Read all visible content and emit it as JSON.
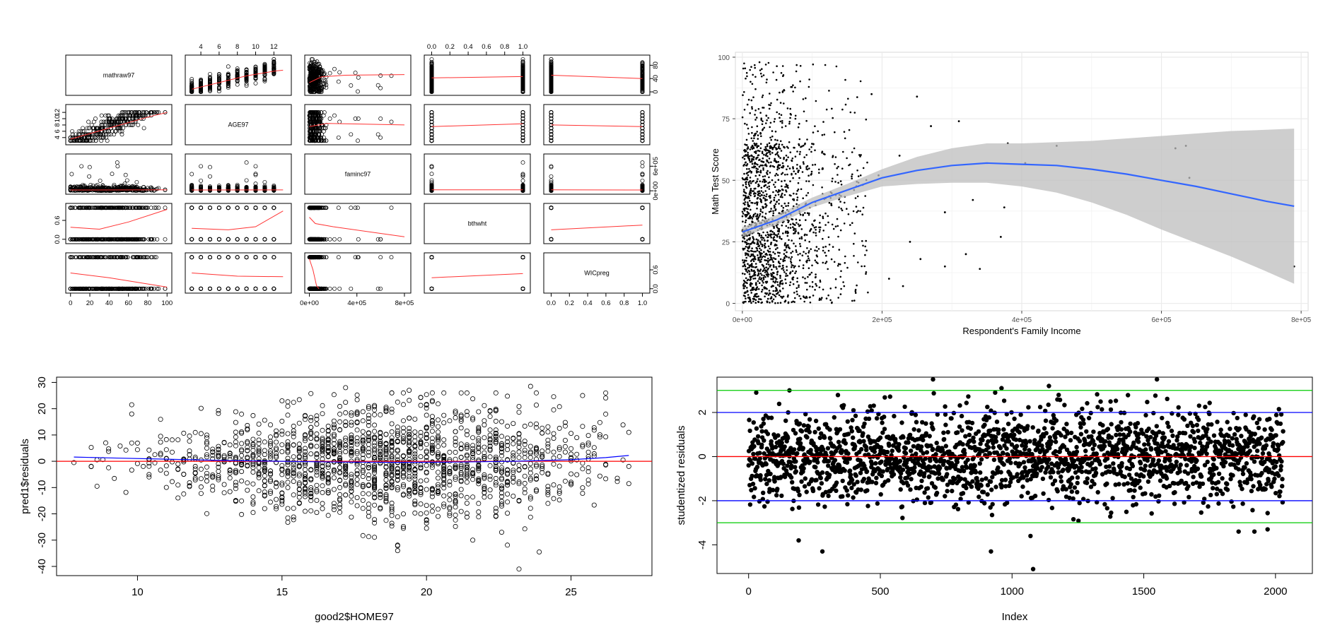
{
  "colors": {
    "loess_red": "#ff3333",
    "smooth_blue": "#3366ff",
    "ribbon_grey": "#bdbdbd",
    "panel_bg": "#ffffff",
    "grid": "#ebebeb",
    "zero_red": "#ff0000",
    "blue_line": "#0000ff",
    "green_line": "#00cc00"
  },
  "chart_data": [
    {
      "id": "pairs",
      "type": "scatter",
      "variables": [
        "mathraw97",
        "AGE97",
        "faminc97",
        "bthwht",
        "WICpreg"
      ],
      "top_ticks": {
        "AGE97": [
          "4",
          "6",
          "8",
          "10",
          "12"
        ],
        "bthwht": [
          "0.0",
          "0.2",
          "0.4",
          "0.6",
          "0.8",
          "1.0"
        ]
      },
      "bottom_ticks": {
        "mathraw97": [
          "0",
          "20",
          "40",
          "60",
          "80",
          "100"
        ],
        "faminc97": [
          "0e+00",
          "4e+05",
          "8e+05"
        ],
        "WICpreg": [
          "0.0",
          "0.2",
          "0.4",
          "0.6",
          "0.8",
          "1.0"
        ]
      },
      "left_ticks": {
        "AGE97": [
          "4",
          "6",
          "8",
          "10",
          "12"
        ],
        "bthwht": [
          "0.0",
          "0.6"
        ]
      },
      "right_ticks": {
        "mathraw97": [
          "0",
          "40",
          "80"
        ],
        "faminc97": [
          "0e+00",
          "6e+05"
        ],
        "WICpreg": [
          "0.0",
          "0.6"
        ]
      },
      "grid": false
    },
    {
      "id": "math_income",
      "type": "scatter",
      "xlabel": "Respondent's Family Income",
      "ylabel": "Math Test Score",
      "x_ticks": [
        "0e+00",
        "2e+05",
        "4e+05",
        "6e+05",
        "8e+05"
      ],
      "y_ticks": [
        "0",
        "25",
        "50",
        "75",
        "100"
      ],
      "xlim": [
        -10000,
        810000
      ],
      "ylim": [
        -3,
        102
      ],
      "smooth": {
        "x": [
          0,
          50000,
          100000,
          150000,
          200000,
          250000,
          300000,
          350000,
          400000,
          450000,
          500000,
          550000,
          600000,
          650000,
          700000,
          750000,
          790000
        ],
        "y": [
          29,
          34,
          41,
          46,
          51,
          54,
          56,
          57,
          56.5,
          56,
          54.5,
          52.5,
          50,
          47.5,
          44.5,
          41.5,
          39.5
        ],
        "lower": [
          27,
          32,
          39,
          43.5,
          47.5,
          48.5,
          49,
          49,
          47.5,
          45,
          41,
          36,
          30,
          24.5,
          19,
          13,
          8
        ],
        "upper": [
          31,
          36,
          43,
          48.5,
          54.5,
          59.5,
          63,
          65,
          65,
          65.5,
          66,
          67,
          68,
          69,
          70,
          70.5,
          71
        ]
      },
      "grid": true,
      "outliers": [
        {
          "x": 330000,
          "y": 42
        },
        {
          "x": 380000,
          "y": 65
        },
        {
          "x": 375000,
          "y": 39
        },
        {
          "x": 370000,
          "y": 27
        },
        {
          "x": 405000,
          "y": 57
        },
        {
          "x": 450000,
          "y": 64
        },
        {
          "x": 620000,
          "y": 63
        },
        {
          "x": 635000,
          "y": 64
        },
        {
          "x": 640000,
          "y": 51
        },
        {
          "x": 790000,
          "y": 15
        },
        {
          "x": 310000,
          "y": 74
        },
        {
          "x": 290000,
          "y": 37
        },
        {
          "x": 290000,
          "y": 15
        },
        {
          "x": 250000,
          "y": 84
        },
        {
          "x": 270000,
          "y": 72
        },
        {
          "x": 225000,
          "y": 60
        },
        {
          "x": 240000,
          "y": 25
        },
        {
          "x": 210000,
          "y": 10
        },
        {
          "x": 230000,
          "y": 7
        },
        {
          "x": 255000,
          "y": 18
        },
        {
          "x": 340000,
          "y": 14
        },
        {
          "x": 320000,
          "y": 20
        },
        {
          "x": 185000,
          "y": 85
        },
        {
          "x": 195000,
          "y": 52
        }
      ]
    },
    {
      "id": "residuals_home",
      "type": "scatter",
      "xlabel": "good2$HOME97",
      "ylabel": "pred1$residuals",
      "x_ticks": [
        "10",
        "15",
        "20",
        "25"
      ],
      "y_ticks": [
        "-40",
        "-30",
        "-20",
        "-10",
        "0",
        "10",
        "20",
        "30"
      ],
      "xlim": [
        7.2,
        27.8
      ],
      "ylim": [
        -43.5,
        32
      ],
      "zero_line": 0,
      "smooth": {
        "x": [
          7.8,
          9,
          11,
          13,
          15,
          17,
          19,
          21,
          23,
          25,
          26.2,
          27
        ],
        "y": [
          1.6,
          1.3,
          0.8,
          0.3,
          0,
          -0.3,
          -0.4,
          -0.3,
          0,
          0.6,
          1.4,
          2.2
        ]
      },
      "outliers": [
        {
          "x": 9.8,
          "y": 21.5
        },
        {
          "x": 9.8,
          "y": 18
        },
        {
          "x": 19,
          "y": -34
        },
        {
          "x": 23.9,
          "y": -34.5
        },
        {
          "x": 23.2,
          "y": -41
        },
        {
          "x": 7.8,
          "y": -0.5
        },
        {
          "x": 26.2,
          "y": 26
        },
        {
          "x": 27,
          "y": 11
        },
        {
          "x": 27,
          "y": -8.5
        },
        {
          "x": 17.2,
          "y": 28
        },
        {
          "x": 19.4,
          "y": 27
        },
        {
          "x": 23.6,
          "y": 28.5
        },
        {
          "x": 15,
          "y": 23
        },
        {
          "x": 8.6,
          "y": -9.5
        },
        {
          "x": 8.9,
          "y": 7
        },
        {
          "x": 10.8,
          "y": 9.5
        },
        {
          "x": 21.2,
          "y": 26
        },
        {
          "x": 25.4,
          "y": 25
        },
        {
          "x": 13.4,
          "y": -15
        },
        {
          "x": 14,
          "y": -19.5
        },
        {
          "x": 14.4,
          "y": -18
        },
        {
          "x": 21.6,
          "y": -30
        },
        {
          "x": 22.6,
          "y": -27
        }
      ]
    },
    {
      "id": "studentized",
      "type": "scatter",
      "xlabel": "Index",
      "ylabel": "studentized residuals",
      "x_ticks": [
        "0",
        "500",
        "1000",
        "1500",
        "2000"
      ],
      "y_ticks": [
        "-4",
        "-2",
        "0",
        "2"
      ],
      "xlim": [
        -120,
        2140
      ],
      "ylim": [
        -5.3,
        3.6
      ],
      "reference_lines": [
        {
          "y": 0,
          "color": "red"
        },
        {
          "y": 2,
          "color": "blue"
        },
        {
          "y": -2,
          "color": "blue"
        },
        {
          "y": 3,
          "color": "green"
        },
        {
          "y": -3,
          "color": "green"
        }
      ],
      "outliers": [
        {
          "x": 1080,
          "y": -5.1
        },
        {
          "x": 920,
          "y": -4.3
        },
        {
          "x": 280,
          "y": -4.3
        },
        {
          "x": 1070,
          "y": -3.6
        },
        {
          "x": 190,
          "y": -3.8
        },
        {
          "x": 700,
          "y": 3.5
        },
        {
          "x": 1550,
          "y": 3.5
        },
        {
          "x": 960,
          "y": 3.1
        },
        {
          "x": 1140,
          "y": 3.2
        },
        {
          "x": 155,
          "y": 3.0
        },
        {
          "x": 1860,
          "y": -3.4
        },
        {
          "x": 1920,
          "y": -3.4
        },
        {
          "x": 1970,
          "y": -3.3
        }
      ]
    }
  ]
}
